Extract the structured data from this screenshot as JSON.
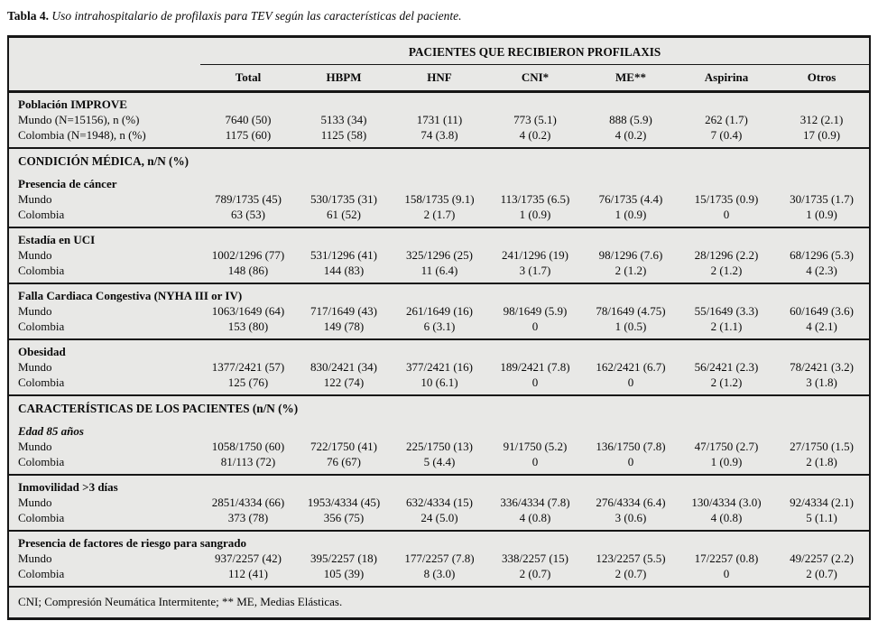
{
  "page": {
    "title_label": "Tabla 4.",
    "title_text": "Uso intrahospitalario de profilaxis para TEV según las características del paciente."
  },
  "colors": {
    "table_background": "#e8e8e6",
    "border": "#161616",
    "text": "#0a0a0a",
    "page_background": "#ffffff"
  },
  "table": {
    "spanning_header": "PACIENTES QUE RECIBIERON PROFILAXIS",
    "columns": [
      "Total",
      "HBPM",
      "HNF",
      "CNI*",
      "ME**",
      "Aspirina",
      "Otros"
    ],
    "sections": [
      {
        "type": "group",
        "label": "Población IMPROVE",
        "rows": [
          {
            "label": "Mundo (N=15156), n (%)",
            "values": [
              "7640 (50)",
              "5133 (34)",
              "1731 (11)",
              "773 (5.1)",
              "888 (5.9)",
              "262 (1.7)",
              "312 (2.1)"
            ]
          },
          {
            "label": "Colombia (N=1948), n (%)",
            "values": [
              "1175 (60)",
              "1125 (58)",
              "74 (3.8)",
              "4 (0.2)",
              "4 (0.2)",
              "7 (0.4)",
              "17 (0.9)"
            ]
          }
        ]
      },
      {
        "type": "band",
        "label": "CONDICIÓN MÉDICA, n/N (%)"
      },
      {
        "type": "group",
        "label": "Presencia de cáncer",
        "rows": [
          {
            "label": "Mundo",
            "values": [
              "789/1735 (45)",
              "530/1735 (31)",
              "158/1735 (9.1)",
              "113/1735 (6.5)",
              "76/1735 (4.4)",
              "15/1735 (0.9)",
              "30/1735 (1.7)"
            ]
          },
          {
            "label": "Colombia",
            "values": [
              "63 (53)",
              "61 (52)",
              "2 (1.7)",
              "1 (0.9)",
              "1 (0.9)",
              "0",
              "1 (0.9)"
            ]
          }
        ]
      },
      {
        "type": "group",
        "label": "Estadía en UCI",
        "rows": [
          {
            "label": "Mundo",
            "values": [
              "1002/1296 (77)",
              "531/1296 (41)",
              "325/1296 (25)",
              "241/1296 (19)",
              "98/1296 (7.6)",
              "28/1296 (2.2)",
              "68/1296 (5.3)"
            ]
          },
          {
            "label": "Colombia",
            "values": [
              "148 (86)",
              "144 (83)",
              "11 (6.4)",
              "3 (1.7)",
              "2 (1.2)",
              "2 (1.2)",
              "4 (2.3)"
            ]
          }
        ]
      },
      {
        "type": "group",
        "label": "Falla Cardiaca Congestiva (NYHA III or IV)",
        "rows": [
          {
            "label": "Mundo",
            "values": [
              "1063/1649 (64)",
              "717/1649 (43)",
              "261/1649 (16)",
              "98/1649 (5.9)",
              "78/1649 (4.75)",
              "55/1649 (3.3)",
              "60/1649 (3.6)"
            ]
          },
          {
            "label": "Colombia",
            "values": [
              "153 (80)",
              "149 (78)",
              "6 (3.1)",
              "0",
              "1 (0.5)",
              "2 (1.1)",
              "4 (2.1)"
            ]
          }
        ]
      },
      {
        "type": "group",
        "label": "Obesidad",
        "rows": [
          {
            "label": "Mundo",
            "values": [
              "1377/2421 (57)",
              "830/2421 (34)",
              "377/2421 (16)",
              "189/2421 (7.8)",
              "162/2421 (6.7)",
              "56/2421 (2.3)",
              "78/2421 (3.2)"
            ]
          },
          {
            "label": "Colombia",
            "values": [
              "125 (76)",
              "122 (74)",
              "10 (6.1)",
              "0",
              "0",
              "2 (1.2)",
              "3 (1.8)"
            ]
          }
        ]
      },
      {
        "type": "band",
        "label": "CARACTERÍSTICAS DE LOS PACIENTES (n/N (%)"
      },
      {
        "type": "group",
        "label": "Edad  85 años",
        "italic": true,
        "rows": [
          {
            "label": "Mundo",
            "values": [
              "1058/1750 (60)",
              "722/1750 (41)",
              "225/1750 (13)",
              "91/1750 (5.2)",
              "136/1750 (7.8)",
              "47/1750 (2.7)",
              "27/1750 (1.5)"
            ]
          },
          {
            "label": "Colombia",
            "values": [
              "81/113 (72)",
              "76 (67)",
              "5 (4.4)",
              "0",
              "0",
              "1 (0.9)",
              "2 (1.8)"
            ]
          }
        ]
      },
      {
        "type": "group",
        "label": "Inmovilidad >3 días",
        "rows": [
          {
            "label": "Mundo",
            "values": [
              "2851/4334 (66)",
              "1953/4334 (45)",
              "632/4334 (15)",
              "336/4334 (7.8)",
              "276/4334 (6.4)",
              "130/4334 (3.0)",
              "92/4334 (2.1)"
            ]
          },
          {
            "label": "Colombia",
            "values": [
              "373 (78)",
              "356 (75)",
              "24 (5.0)",
              "4 (0.8)",
              "3 (0.6)",
              "4 (0.8)",
              "5 (1.1)"
            ]
          }
        ]
      },
      {
        "type": "group",
        "label": "Presencia de factores de riesgo para sangrado",
        "rows": [
          {
            "label": "Mundo",
            "values": [
              "937/2257 (42)",
              "395/2257 (18)",
              "177/2257 (7.8)",
              "338/2257 (15)",
              "123/2257 (5.5)",
              "17/2257 (0.8)",
              "49/2257 (2.2)"
            ]
          },
          {
            "label": "Colombia",
            "values": [
              "112 (41)",
              "105 (39)",
              "8 (3.0)",
              "2 (0.7)",
              "2 (0.7)",
              "0",
              "2 (0.7)"
            ]
          }
        ]
      }
    ],
    "footnote": "CNI; Compresión Neumática Intermitente; ** ME, Medias Elásticas."
  }
}
